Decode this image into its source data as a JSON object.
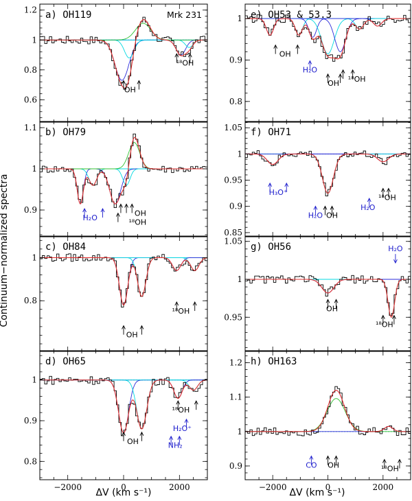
{
  "figure": {
    "ylabel": "Continuum−normalized spectra",
    "xlabel": "ΔV (km s⁻¹)"
  },
  "colors": {
    "data": "#000000",
    "total": "#e03030",
    "blue": "#2a2ad8",
    "cyan": "#00d8e0",
    "green": "#30c030",
    "dotted": "#00a0a0",
    "annot_black": "#000000",
    "annot_blue": "#1c1ccc"
  },
  "chart_data": [
    {
      "id": "a",
      "type": "line",
      "label": "a) OH119",
      "extra_label": "Mrk 231",
      "xlim": [
        -3000,
        3000
      ],
      "ylim": [
        0.45,
        1.24
      ],
      "xticks": [
        -2000,
        0,
        2000
      ],
      "yticks": [
        0.6,
        0.8,
        1,
        1.2
      ],
      "ytick_labels": [
        "0.6",
        "0.8",
        "1",
        "1.2"
      ],
      "show_xticklabels": false,
      "features": [
        {
          "x": -60,
          "depth": 0.27,
          "width": 250
        },
        {
          "x": 200,
          "depth": 0.12,
          "width": 170
        },
        {
          "x": 2050,
          "depth": 0.1,
          "width": 170
        },
        {
          "x": 2350,
          "depth": 0.05,
          "width": 140
        }
      ],
      "emission": {
        "x": 700,
        "amp": 0.14,
        "width": 250
      },
      "annotations": [
        {
          "text": "OH",
          "x": 230,
          "y": 0.65,
          "arrows": [
            0,
            550
          ],
          "color": "black"
        },
        {
          "text": "¹⁸OH",
          "x": 2200,
          "y": 0.83,
          "arrows": [
            1900,
            2380
          ],
          "color": "black"
        }
      ]
    },
    {
      "id": "b",
      "type": "line",
      "label": "b) OH79",
      "xlim": [
        -3000,
        3000
      ],
      "ylim": [
        0.835,
        1.115
      ],
      "xticks": [
        -2000,
        0,
        2000
      ],
      "yticks": [
        0.9,
        1,
        1.1
      ],
      "ytick_labels": [
        "0.9",
        "1",
        "1.1"
      ],
      "show_xticklabels": false,
      "features": [
        {
          "x": -1550,
          "depth": 0.085,
          "width": 110
        },
        {
          "x": -1100,
          "depth": 0.04,
          "width": 140
        },
        {
          "x": -300,
          "depth": 0.085,
          "width": 200
        },
        {
          "x": 100,
          "depth": 0.04,
          "width": 130
        }
      ],
      "emission": {
        "x": 380,
        "amp": 0.08,
        "width": 180
      },
      "annotations": [
        {
          "text": "H₂O",
          "x": -1200,
          "y": 0.875,
          "arrows": [
            -1400,
            -750
          ],
          "color": "blue"
        },
        {
          "text": "OH",
          "x": 600,
          "y": 0.886,
          "arrows": [
            -100,
            100,
            300
          ],
          "color": "black"
        },
        {
          "text": "¹⁸OH",
          "x": 500,
          "y": 0.864,
          "arrows": [
            -200
          ],
          "color": "black"
        }
      ]
    },
    {
      "id": "c",
      "type": "line",
      "label": "c) OH84",
      "xlim": [
        -3000,
        3000
      ],
      "ylim": [
        0.565,
        1.1
      ],
      "xticks": [
        -2000,
        0,
        2000
      ],
      "yticks": [
        0.8,
        1
      ],
      "ytick_labels": [
        "0.8",
        "1"
      ],
      "show_xticklabels": false,
      "features": [
        {
          "x": 0,
          "depth": 0.22,
          "width": 150
        },
        {
          "x": 650,
          "depth": 0.18,
          "width": 150
        },
        {
          "x": 1900,
          "depth": 0.06,
          "width": 150
        },
        {
          "x": 2550,
          "depth": 0.06,
          "width": 150
        }
      ],
      "emission": null,
      "annotations": [
        {
          "text": "OH",
          "x": 300,
          "y": 0.63,
          "arrows": [
            0,
            650
          ],
          "color": "black"
        },
        {
          "text": "¹⁸OH",
          "x": 2050,
          "y": 0.74,
          "arrows": [
            1900,
            2550
          ],
          "color": "black"
        }
      ]
    },
    {
      "id": "d",
      "type": "line",
      "label": "d) OH65",
      "xlim": [
        -3000,
        3000
      ],
      "ylim": [
        0.755,
        1.072
      ],
      "xticks": [
        -2000,
        0,
        2000
      ],
      "yticks": [
        0.8,
        0.9,
        1
      ],
      "ytick_labels": [
        "0.8",
        "0.9",
        "1"
      ],
      "show_xticklabels": true,
      "xtick_labels": [
        "−2000",
        "0",
        "2000"
      ],
      "features": [
        {
          "x": 0,
          "depth": 0.13,
          "width": 180
        },
        {
          "x": 650,
          "depth": 0.12,
          "width": 180
        },
        {
          "x": 1950,
          "depth": 0.045,
          "width": 150
        },
        {
          "x": 2500,
          "depth": 0.025,
          "width": 150
        }
      ],
      "emission": null,
      "annotations": [
        {
          "text": "OH",
          "x": 330,
          "y": 0.843,
          "arrows": [
            0,
            650
          ],
          "color": "black"
        },
        {
          "text": "¹⁸OH",
          "x": 2050,
          "y": 0.92,
          "arrows": [
            1950,
            2600
          ],
          "color": "black"
        },
        {
          "text": "H₂O⁺",
          "x": 2100,
          "y": 0.875,
          "arrows": [
            2250
          ],
          "color": "blue"
        },
        {
          "text": "NH₂",
          "x": 1850,
          "y": 0.833,
          "arrows": [
            1700,
            2000
          ],
          "color": "blue"
        }
      ]
    },
    {
      "id": "e",
      "type": "line",
      "label": "e) OH53 & 53.3",
      "xlim": [
        -3000,
        3000
      ],
      "ylim": [
        0.75,
        1.035
      ],
      "xticks": [
        -2000,
        0,
        2000
      ],
      "yticks": [
        0.8,
        0.9,
        1
      ],
      "ytick_labels": [
        "0.8",
        "0.9",
        "1"
      ],
      "show_xticklabels": false,
      "features": [
        {
          "x": -2100,
          "depth": 0.04,
          "width": 130
        },
        {
          "x": -1050,
          "depth": 0.04,
          "width": 130
        },
        {
          "x": -550,
          "depth": 0.045,
          "width": 140
        },
        {
          "x": 0,
          "depth": 0.085,
          "width": 230
        },
        {
          "x": 450,
          "depth": 0.08,
          "width": 200
        },
        {
          "x": 1150,
          "depth": 0.025,
          "width": 150
        },
        {
          "x": 1800,
          "depth": 0.018,
          "width": 150
        }
      ],
      "emission": null,
      "annotations": [
        {
          "text": "OH",
          "x": -1550,
          "y": 0.908,
          "arrows": [
            -1900,
            -1100
          ],
          "color": "black"
        },
        {
          "text": "H₂O",
          "x": -650,
          "y": 0.87,
          "arrows": [
            -650
          ],
          "color": "blue"
        },
        {
          "text": "OH",
          "x": 200,
          "y": 0.838,
          "arrows": [
            0,
            450
          ],
          "color": "black"
        },
        {
          "text": "¹⁸OH",
          "x": 1050,
          "y": 0.848,
          "arrows": [
            550,
            900
          ],
          "color": "black"
        }
      ]
    },
    {
      "id": "f",
      "type": "line",
      "label": "f) OH71",
      "xlim": [
        -3000,
        3000
      ],
      "ylim": [
        0.842,
        1.062
      ],
      "xticks": [
        -2000,
        0,
        2000
      ],
      "yticks": [
        0.85,
        0.9,
        0.95,
        1,
        1.05
      ],
      "ytick_labels": [
        "0.85",
        "0.9",
        "0.95",
        "1",
        "1.05"
      ],
      "show_xticklabels": false,
      "features": [
        {
          "x": -2000,
          "depth": 0.02,
          "width": 200
        },
        {
          "x": 0,
          "depth": 0.075,
          "width": 200
        },
        {
          "x": 2000,
          "depth": 0.015,
          "width": 200
        }
      ],
      "emission": null,
      "annotations": [
        {
          "text": "H₃O⁺",
          "x": -1800,
          "y": 0.922,
          "arrows": [
            -2100,
            -1500
          ],
          "color": "blue"
        },
        {
          "text": "H₂O",
          "x": -450,
          "y": 0.878,
          "arrows": [
            -450
          ],
          "color": "blue"
        },
        {
          "text": "OH",
          "x": 150,
          "y": 0.878,
          "arrows": [
            -100,
            150
          ],
          "color": "black"
        },
        {
          "text": "¹⁸OH",
          "x": 2150,
          "y": 0.912,
          "arrows": [
            2000,
            2200
          ],
          "color": "black"
        },
        {
          "text": "H₂O",
          "x": 1450,
          "y": 0.893,
          "arrows": [
            1500
          ],
          "color": "blue"
        }
      ]
    },
    {
      "id": "g",
      "type": "line",
      "label": "g) OH56",
      "xlim": [
        -3000,
        3000
      ],
      "ylim": [
        0.905,
        1.057
      ],
      "xticks": [
        -2000,
        0,
        2000
      ],
      "yticks": [
        0.95,
        1,
        1.05
      ],
      "ytick_labels": [
        "0.95",
        "1",
        "1.05"
      ],
      "show_xticklabels": false,
      "features": [
        {
          "x": 0,
          "depth": 0.018,
          "width": 220
        },
        {
          "x": 2300,
          "depth": 0.05,
          "width": 120
        }
      ],
      "emission": null,
      "annotations": [
        {
          "text": "H₂O",
          "x": 2450,
          "y": 1.037,
          "arrows": [],
          "color": "blue",
          "down_arrow": 2450
        },
        {
          "text": "OH",
          "x": 150,
          "y": 0.958,
          "arrows": [
            0,
            300
          ],
          "color": "black"
        },
        {
          "text": "¹⁸OH",
          "x": 2050,
          "y": 0.937,
          "arrows": [
            2000,
            2400
          ],
          "color": "black"
        }
      ]
    },
    {
      "id": "h",
      "type": "line",
      "label": "h) OH163",
      "xlim": [
        -3000,
        3000
      ],
      "ylim": [
        0.86,
        1.235
      ],
      "xticks": [
        -2000,
        0,
        2000
      ],
      "yticks": [
        0.9,
        1,
        1.1,
        1.2
      ],
      "ytick_labels": [
        "0.9",
        "1",
        "1.1",
        "1.2"
      ],
      "show_xticklabels": true,
      "xtick_labels": [
        "−2000",
        "0",
        "2000"
      ],
      "features": [
        {
          "x": 2200,
          "depth": -0.015,
          "width": 150
        }
      ],
      "emission": {
        "x": 300,
        "amp": 0.12,
        "width": 300
      },
      "annotations": [
        {
          "text": "CO",
          "x": -600,
          "y": 0.895,
          "arrows": [
            -600
          ],
          "color": "blue"
        },
        {
          "text": "OH",
          "x": 200,
          "y": 0.895,
          "arrows": [
            0,
            300
          ],
          "color": "black"
        },
        {
          "text": "¹⁸OH",
          "x": 2250,
          "y": 0.885,
          "arrows": [
            2050,
            2600
          ],
          "color": "black"
        }
      ]
    }
  ]
}
